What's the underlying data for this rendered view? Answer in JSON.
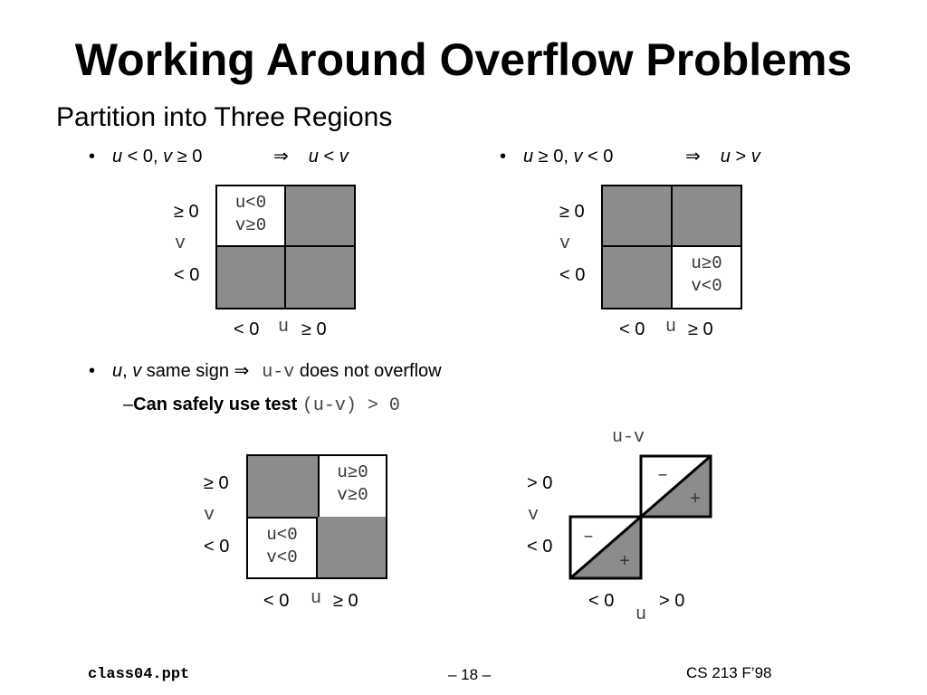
{
  "title": "Working Around Overflow Problems",
  "subtitle": "Partition into Three Regions",
  "bullet1": {
    "dot": "•",
    "u": "u",
    "lt0": " < 0, ",
    "v": "v",
    "ge0": " ≥ 0",
    "implies": "⇒",
    "res_u": "u",
    "res_op": " < ",
    "res_v": "v"
  },
  "bullet2": {
    "dot": "•",
    "u": "u",
    "ge0": " ≥ 0, ",
    "v": "v",
    "lt0": " < 0",
    "implies": "⇒",
    "res_u": "u",
    "res_op": " > ",
    "res_v": "v"
  },
  "bullet3": {
    "dot": "•",
    "u": "u",
    "comma": ", ",
    "v": "v",
    "text": " same sign ",
    "implies": "⇒",
    "code": "u-v",
    "rest": " does not overflow"
  },
  "sub1": {
    "dash": "–",
    "bold": "Can safely use test ",
    "code": "(u-v) > 0"
  },
  "axes": {
    "ge0": "≥ 0",
    "lt0": "< 0",
    "gt0": "> 0",
    "v": "v",
    "u": "u",
    "uv": "u-v"
  },
  "cells": {
    "ult0": "u<0",
    "vge0": "v≥0",
    "uge0": "u≥0",
    "vlt0": "v<0"
  },
  "signs": {
    "minus": "–",
    "plus": "+"
  },
  "footer": {
    "left": "class04.ppt",
    "center": "– 18 –",
    "right": "CS 213 F’98"
  }
}
